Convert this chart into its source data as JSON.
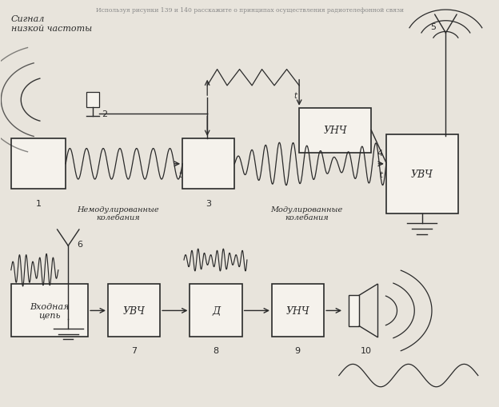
{
  "bg_color": "#e8e4dc",
  "line_color": "#2a2a2a",
  "box_color": "#f5f2ec",
  "label_signal": "Сигнал\nнизкой частоты",
  "label_nemod": "Немодулированные\nколебания",
  "label_mod": "Модулированные\nколебания"
}
